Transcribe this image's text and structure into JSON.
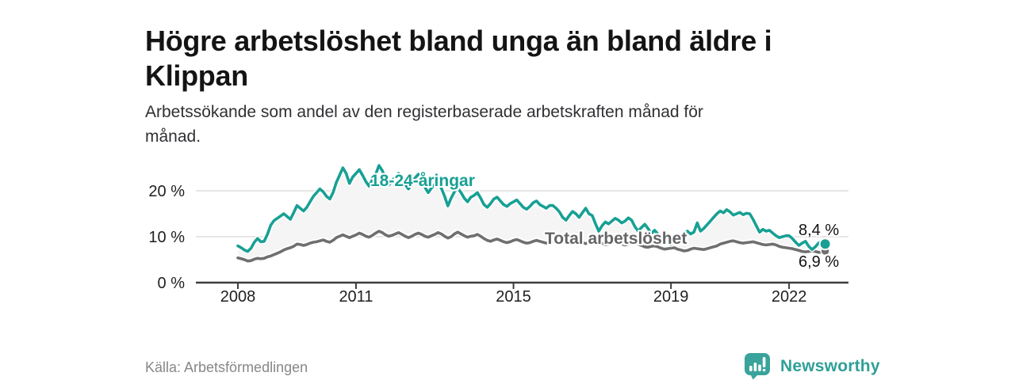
{
  "title": {
    "full": "Högre arbetslöshet bland unga än bland äldre i Klippan",
    "line1": "Högre arbetslöshet bland unga än bland äldre i",
    "line2": "Klippan"
  },
  "subtitle": {
    "full": "Arbetssökande som andel av den registerbaserade arbetskraften månad för månad.",
    "line1": "Arbetssökande som andel av den registerbaserade arbetskraften månad för",
    "line2": "månad."
  },
  "source_caption": "Källa: Arbetsförmedlingen",
  "branding": {
    "name": "Newsworthy",
    "icon": "newsworthy-chart-bubble-icon",
    "icon_color": "#3aa39b",
    "text_color": "#2f9f97"
  },
  "colors": {
    "title": "#141414",
    "subtitle": "#303034",
    "youth_line": "#18a094",
    "total_line": "#6f6f6f",
    "fill_between": "#f5f5f6",
    "gridline": "#dddddd",
    "axis": "#3d3d3d",
    "tick_text": "#1f1f1f",
    "source_text": "#87878b"
  },
  "chart_data": {
    "type": "line",
    "title": "Högre arbetslöshet bland unga än bland äldre i Klippan",
    "subtitle": "Arbetssökande som andel av den registerbaserade arbetskraften månad för månad.",
    "x_unit": "month",
    "x_start": "2008-01",
    "x_end": "2022-12",
    "x_tick_years": [
      2008,
      2011,
      2015,
      2019,
      2022
    ],
    "x_tick_labels": [
      "2008",
      "2011",
      "2015",
      "2019",
      "2022"
    ],
    "y_ticks": [
      0,
      10,
      20
    ],
    "y_tick_labels": [
      "0 %",
      "10 %",
      "20 %"
    ],
    "ylim": [
      0,
      26
    ],
    "grid": true,
    "legend": "inline-labels",
    "fill_between_series": true,
    "series": [
      {
        "name": "18-24-åringar",
        "color": "#18a094",
        "end_label": "8,4 %",
        "end_value": 8.4,
        "values": [
          8.0,
          7.6,
          7.1,
          6.8,
          7.5,
          8.8,
          9.6,
          8.9,
          9.0,
          10.5,
          12.5,
          13.5,
          14.0,
          14.5,
          15.0,
          14.4,
          13.8,
          15.2,
          16.8,
          16.2,
          15.6,
          16.4,
          17.6,
          18.8,
          19.6,
          20.4,
          19.8,
          18.8,
          18.2,
          19.6,
          21.8,
          23.4,
          25.0,
          23.8,
          21.6,
          23.0,
          23.8,
          24.6,
          23.4,
          22.0,
          21.0,
          22.4,
          23.6,
          25.5,
          24.4,
          22.6,
          21.2,
          22.2,
          23.0,
          23.8,
          22.6,
          21.4,
          20.4,
          21.6,
          22.8,
          23.6,
          22.4,
          20.8,
          19.6,
          20.6,
          21.4,
          22.0,
          20.6,
          18.8,
          16.7,
          18.4,
          19.8,
          20.6,
          19.6,
          18.4,
          17.6,
          18.6,
          19.0,
          19.6,
          18.4,
          17.0,
          16.4,
          17.2,
          18.2,
          18.6,
          17.8,
          17.0,
          16.6,
          17.2,
          17.6,
          18.0,
          17.2,
          16.4,
          16.0,
          16.6,
          17.4,
          17.8,
          17.0,
          16.6,
          16.2,
          16.8,
          16.8,
          16.2,
          15.4,
          14.2,
          13.6,
          14.6,
          15.5,
          15.0,
          14.2,
          15.2,
          16.2,
          15.0,
          14.6,
          12.8,
          11.2,
          12.4,
          13.2,
          12.8,
          13.4,
          14.0,
          13.6,
          13.0,
          13.4,
          14.1,
          13.6,
          12.2,
          11.2,
          12.0,
          12.7,
          11.8,
          10.7,
          11.4,
          10.6,
          9.8,
          9.2,
          8.8,
          8.3,
          8.6,
          9.4,
          10.2,
          10.8,
          11.2,
          10.6,
          11.0,
          13.0,
          11.2,
          11.8,
          12.6,
          13.4,
          14.2,
          15.0,
          15.6,
          15.2,
          15.9,
          15.4,
          14.7,
          15.0,
          15.3,
          14.8,
          15.1,
          15.0,
          13.8,
          12.4,
          11.0,
          11.6,
          11.2,
          11.4,
          10.8,
          10.2,
          9.8,
          10.0,
          10.2,
          10.2,
          9.6,
          8.8,
          8.1,
          8.6,
          9.0,
          7.9,
          7.2,
          7.8,
          8.6,
          9.0,
          8.4
        ]
      },
      {
        "name": "Total arbetslöshet",
        "color": "#6f6f6f",
        "end_label": "6,9 %",
        "end_value": 6.9,
        "values": [
          5.4,
          5.2,
          5.0,
          4.7,
          4.8,
          5.1,
          5.3,
          5.2,
          5.3,
          5.6,
          5.8,
          6.1,
          6.4,
          6.7,
          7.1,
          7.4,
          7.6,
          7.9,
          8.4,
          8.3,
          8.1,
          8.3,
          8.6,
          8.8,
          8.9,
          9.1,
          9.3,
          9.0,
          8.8,
          9.2,
          9.8,
          10.1,
          10.4,
          10.1,
          9.8,
          10.1,
          10.4,
          10.8,
          10.5,
          10.1,
          9.9,
          10.3,
          10.8,
          11.2,
          10.9,
          10.4,
          10.1,
          10.3,
          10.6,
          10.9,
          10.5,
          10.1,
          9.8,
          10.1,
          10.5,
          10.8,
          10.5,
          10.1,
          9.9,
          10.2,
          10.5,
          10.9,
          10.6,
          10.1,
          9.7,
          10.0,
          10.6,
          11.0,
          10.6,
          10.2,
          9.9,
          10.1,
          10.2,
          10.5,
          10.1,
          9.6,
          9.2,
          9.0,
          9.3,
          9.5,
          9.2,
          8.9,
          8.7,
          8.9,
          9.2,
          9.4,
          9.1,
          8.8,
          8.6,
          8.7,
          9.0,
          9.2,
          9.0,
          8.8,
          8.6,
          8.8,
          9.0,
          9.2,
          8.9,
          8.7,
          8.5,
          8.6,
          8.9,
          9.1,
          8.9,
          8.7,
          8.5,
          8.7,
          8.9,
          9.1,
          8.8,
          8.5,
          8.3,
          8.4,
          8.7,
          8.9,
          8.7,
          8.4,
          8.2,
          8.4,
          8.5,
          8.7,
          8.4,
          8.1,
          7.8,
          7.7,
          7.9,
          8.0,
          7.8,
          7.5,
          7.3,
          7.4,
          7.5,
          7.6,
          7.3,
          7.1,
          6.9,
          7.0,
          7.3,
          7.5,
          7.4,
          7.3,
          7.2,
          7.4,
          7.6,
          7.8,
          8.0,
          8.4,
          8.6,
          8.8,
          9.0,
          9.1,
          8.9,
          8.7,
          8.6,
          8.7,
          8.8,
          8.9,
          8.7,
          8.5,
          8.3,
          8.2,
          8.3,
          8.4,
          8.2,
          7.9,
          7.7,
          7.6,
          7.5,
          7.4,
          7.2,
          7.0,
          6.8,
          6.7,
          6.8,
          6.9,
          6.8,
          6.6,
          6.6,
          6.9
        ]
      }
    ]
  }
}
